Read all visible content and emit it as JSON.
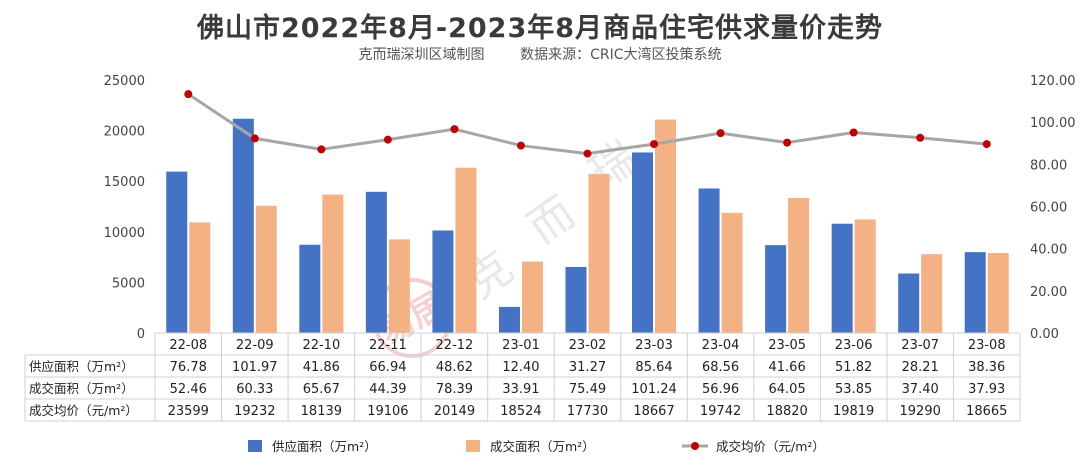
{
  "chart_data": {
    "type": "bar",
    "title": "佛山市2022年8月-2023年8月商品住宅供求量价走势",
    "subtitle_left": "克而瑞深圳区域制图",
    "subtitle_right": "数据来源：CRIC大湾区投策系统",
    "categories": [
      "22-08",
      "22-09",
      "22-10",
      "22-11",
      "22-12",
      "23-01",
      "23-02",
      "23-03",
      "23-04",
      "23-05",
      "23-06",
      "23-07",
      "23-08"
    ],
    "y_left_ticks": [
      "0",
      "5000",
      "10000",
      "15000",
      "20000",
      "25000"
    ],
    "y_left_range": [
      0,
      25000
    ],
    "y_right_ticks": [
      "0.00",
      "20.00",
      "40.00",
      "60.00",
      "80.00",
      "100.00",
      "120.00"
    ],
    "y_right_range": [
      0,
      120
    ],
    "series": [
      {
        "name": "供应面积（万m²）",
        "type": "bar",
        "axis": "left",
        "values": [
          15950,
          21170,
          8720,
          13950,
          10130,
          2580,
          6520,
          17840,
          14280,
          8680,
          10800,
          5880,
          7990
        ],
        "table_values": [
          "76.78",
          "101.97",
          "41.86",
          "66.94",
          "48.62",
          "12.40",
          "31.27",
          "85.64",
          "68.56",
          "41.66",
          "51.82",
          "28.21",
          "38.36"
        ],
        "color": "#4472c4"
      },
      {
        "name": "成交面积（万m²）",
        "type": "bar",
        "axis": "left",
        "values": [
          10930,
          12570,
          13680,
          9250,
          16330,
          7060,
          15730,
          21090,
          11870,
          13340,
          11220,
          7790,
          7900
        ],
        "table_values": [
          "52.46",
          "60.33",
          "65.67",
          "44.39",
          "78.39",
          "33.91",
          "75.49",
          "101.24",
          "56.96",
          "64.05",
          "53.85",
          "37.40",
          "37.93"
        ],
        "color": "#f4b183"
      },
      {
        "name": "成交均价（元/m²）",
        "type": "line",
        "axis": "right",
        "values": [
          113.3,
          92.3,
          87.1,
          91.7,
          96.7,
          88.9,
          85.1,
          89.6,
          94.8,
          90.3,
          95.1,
          92.6,
          89.6
        ],
        "table_values": [
          "23599",
          "19232",
          "18139",
          "19106",
          "20149",
          "18524",
          "17730",
          "18667",
          "19742",
          "18820",
          "19819",
          "19290",
          "18665"
        ],
        "color": "#a6a6a6",
        "marker_color": "#c00000"
      }
    ],
    "row_labels": [
      "供应面积（万m²）",
      "成交面积（万m²）",
      "成交均价（元/m²）"
    ],
    "legend_position": "bottom",
    "watermark": "克而瑞",
    "stamp": "易居"
  }
}
